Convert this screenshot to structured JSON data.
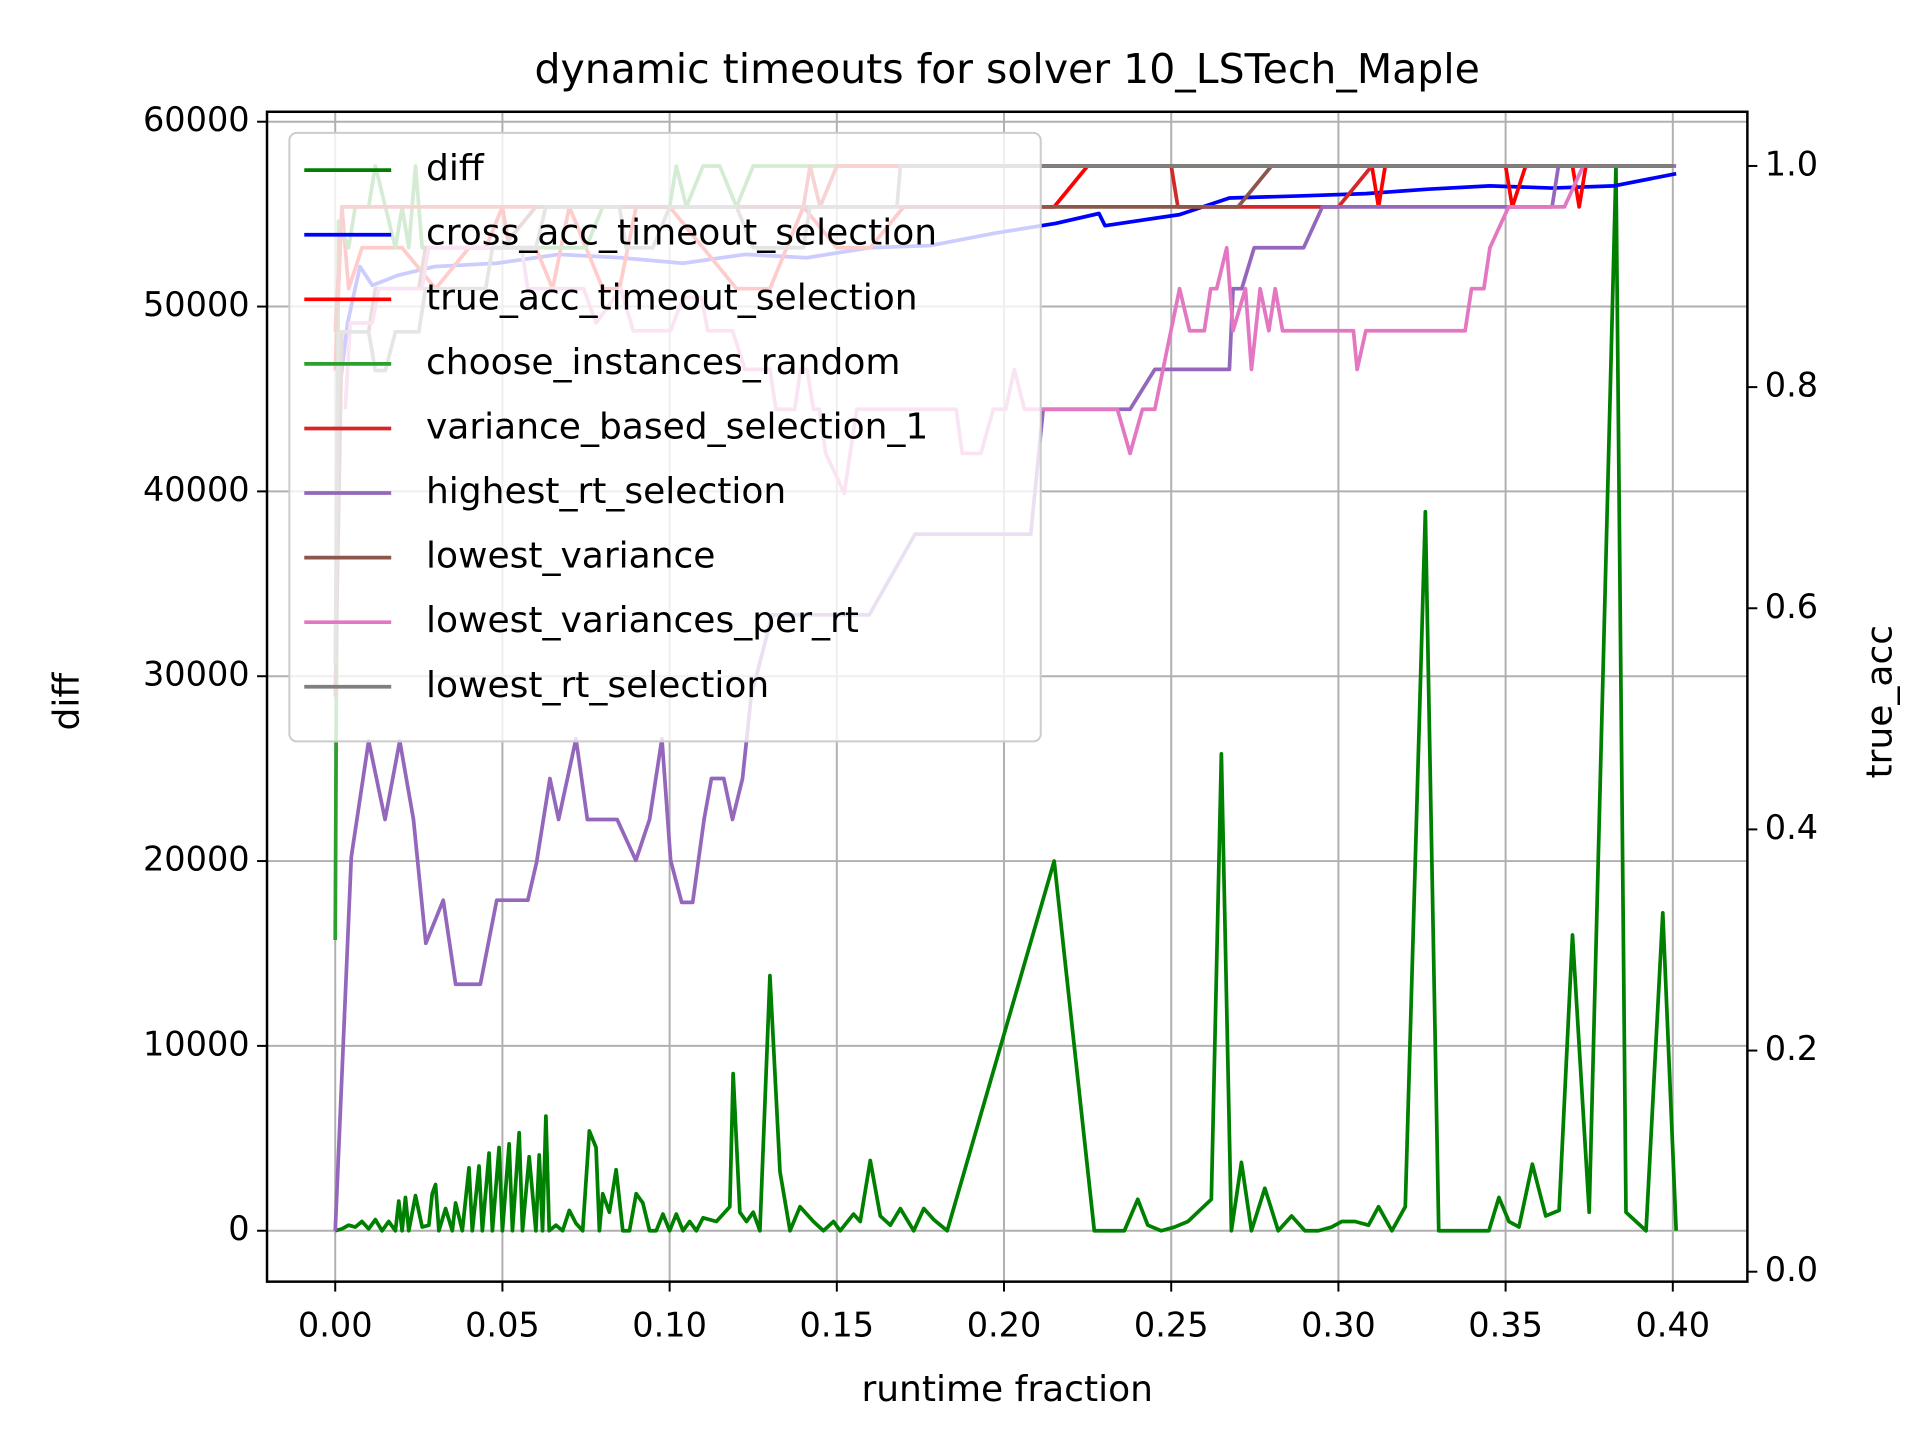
{
  "chart_data": {
    "type": "line",
    "title": "dynamic timeouts for solver 10_LSTech_Maple",
    "xlabel": "runtime fraction",
    "ylabel": "diff",
    "y2label": "true_acc",
    "ylabel_color": "green",
    "y2label_color": "red",
    "grid": true,
    "legend": "upper left",
    "xlim": [
      -0.0204,
      0.4223
    ],
    "ylim": [
      -2755,
      60538
    ],
    "y2lim": [
      -0.009,
      1.049
    ],
    "xticks": [
      {
        "value": 0,
        "label": "0.00"
      },
      {
        "value": 0.05,
        "label": "0.05"
      },
      {
        "value": 0.1,
        "label": "0.10"
      },
      {
        "value": 0.15,
        "label": "0.15"
      },
      {
        "value": 0.2,
        "label": "0.20"
      },
      {
        "value": 0.25,
        "label": "0.25"
      },
      {
        "value": 0.3,
        "label": "0.30"
      },
      {
        "value": 0.35,
        "label": "0.35"
      },
      {
        "value": 0.4,
        "label": "0.40"
      }
    ],
    "yticks": [
      0,
      10000,
      20000,
      30000,
      40000,
      50000,
      60000
    ],
    "y2ticks": [
      {
        "value": 0,
        "label": "0.0"
      },
      0.2,
      0.4,
      0.6,
      0.8,
      {
        "value": 1,
        "label": "1.0"
      }
    ],
    "series": [
      {
        "name": "diff",
        "color": "#008000",
        "axis": "y",
        "x": [
          0,
          0.002,
          0.004,
          0.006,
          0.008,
          0.01,
          0.012,
          0.014,
          0.016,
          0.018,
          0.019,
          0.02,
          0.021,
          0.022,
          0.024,
          0.026,
          0.028,
          0.029,
          0.03,
          0.031,
          0.033,
          0.035,
          0.036,
          0.038,
          0.04,
          0.041,
          0.043,
          0.044,
          0.046,
          0.047,
          0.049,
          0.05,
          0.052,
          0.053,
          0.055,
          0.056,
          0.058,
          0.06,
          0.061,
          0.062,
          0.063,
          0.064,
          0.066,
          0.068,
          0.07,
          0.072,
          0.074,
          0.076,
          0.078,
          0.079,
          0.08,
          0.082,
          0.084,
          0.086,
          0.088,
          0.09,
          0.092,
          0.094,
          0.096,
          0.098,
          0.1,
          0.102,
          0.104,
          0.106,
          0.108,
          0.11,
          0.114,
          0.118,
          0.119,
          0.121,
          0.123,
          0.125,
          0.127,
          0.13,
          0.133,
          0.136,
          0.139,
          0.143,
          0.146,
          0.149,
          0.151,
          0.155,
          0.157,
          0.16,
          0.163,
          0.166,
          0.169,
          0.173,
          0.176,
          0.179,
          0.183,
          0.215,
          0.227,
          0.236,
          0.24,
          0.243,
          0.247,
          0.251,
          0.255,
          0.262,
          0.265,
          0.268,
          0.271,
          0.274,
          0.278,
          0.282,
          0.286,
          0.29,
          0.294,
          0.298,
          0.301,
          0.305,
          0.309,
          0.312,
          0.316,
          0.32,
          0.326,
          0.33,
          0.345,
          0.348,
          0.351,
          0.354,
          0.358,
          0.362,
          0.366,
          0.37,
          0.375,
          0.383,
          0.386,
          0.392,
          0.397,
          0.401
        ],
        "values": [
          0,
          100,
          300,
          200,
          500,
          100,
          600,
          0,
          500,
          0,
          1600,
          0,
          1800,
          0,
          1900,
          200,
          300,
          2000,
          2500,
          0,
          1200,
          0,
          1500,
          0,
          3400,
          0,
          3500,
          0,
          4200,
          0,
          4500,
          0,
          4700,
          0,
          5300,
          0,
          4000,
          0,
          4100,
          0,
          6200,
          0,
          300,
          0,
          1100,
          400,
          0,
          5400,
          4500,
          0,
          2000,
          1000,
          3300,
          0,
          0,
          2000,
          1500,
          0,
          0,
          900,
          0,
          900,
          0,
          500,
          0,
          700,
          500,
          1300,
          8500,
          1000,
          500,
          1000,
          0,
          13800,
          3200,
          0,
          1300,
          500,
          0,
          500,
          0,
          900,
          500,
          3800,
          800,
          300,
          1200,
          0,
          1200,
          600,
          0,
          20000,
          0,
          0,
          1700,
          300,
          0,
          200,
          500,
          1700,
          25800,
          0,
          3700,
          0,
          2300,
          0,
          800,
          0,
          0,
          200,
          500,
          500,
          300,
          1300,
          0,
          1300,
          38900,
          0,
          0,
          1800,
          500,
          200,
          3600,
          800,
          1100,
          16000,
          1000,
          57500,
          1000,
          0,
          17200,
          0
        ]
      },
      {
        "name": "cross_acc_timeout_selection",
        "color": "#0000ff",
        "axis": "y2",
        "x": [
          0.001,
          0.0037,
          0.0074,
          0.0111,
          0.0186,
          0.0297,
          0.0483,
          0.0668,
          0.0854,
          0.104,
          0.1225,
          0.141,
          0.1597,
          0.178,
          0.1968,
          0.2154,
          0.2284,
          0.2302,
          0.2525,
          0.2674,
          0.2896,
          0.3082,
          0.3268,
          0.3453,
          0.3639,
          0.3825,
          0.401
        ],
        "values": [
          0.791,
          0.858,
          0.909,
          0.892,
          0.901,
          0.909,
          0.912,
          0.92,
          0.917,
          0.912,
          0.92,
          0.917,
          0.926,
          0.928,
          0.939,
          0.948,
          0.957,
          0.946,
          0.956,
          0.971,
          0.973,
          0.975,
          0.979,
          0.982,
          0.98,
          0.982,
          0.993
        ]
      },
      {
        "name": "true_acc_timeout_selection",
        "color": "#ff0000",
        "axis": "y2",
        "x": [
          0,
          0.002,
          0.004,
          0.008,
          0.02,
          0.03,
          0.04,
          0.045,
          0.05,
          0.052,
          0.06,
          0.065,
          0.07,
          0.08,
          0.085,
          0.09,
          0.1,
          0.11,
          0.12,
          0.13,
          0.135,
          0.14,
          0.15,
          0.16,
          0.17,
          0.215,
          0.225,
          0.31,
          0.312,
          0.314,
          0.35,
          0.352,
          0.356,
          0.37,
          0.372,
          0.374,
          0.4
        ],
        "values": [
          0.815,
          0.963,
          0.889,
          0.926,
          0.926,
          0.889,
          0.926,
          0.926,
          0.963,
          0.926,
          0.926,
          0.889,
          0.963,
          0.889,
          0.889,
          0.963,
          0.963,
          0.926,
          0.889,
          0.889,
          0.926,
          0.963,
          0.926,
          0.926,
          0.963,
          0.963,
          1.0,
          1.0,
          0.963,
          1.0,
          1.0,
          0.963,
          1.0,
          1.0,
          0.963,
          1.0,
          1.0
        ]
      },
      {
        "name": "choose_instances_random",
        "color": "#2ca02c",
        "axis": "y2",
        "x": [
          0,
          0.001,
          0.004,
          0.006,
          0.01,
          0.012,
          0.015,
          0.018,
          0.02,
          0.022,
          0.024,
          0.026,
          0.075,
          0.08,
          0.1,
          0.102,
          0.105,
          0.11,
          0.115,
          0.12,
          0.125,
          0.4
        ],
        "values": [
          0.3,
          0.95,
          0.926,
          0.963,
          0.963,
          1.0,
          0.963,
          0.926,
          0.963,
          0.926,
          1.0,
          0.926,
          0.926,
          0.963,
          0.963,
          1.0,
          0.963,
          1.0,
          1.0,
          0.963,
          1.0,
          1.0
        ]
      },
      {
        "name": "variance_based_selection_1",
        "color": "#d62728",
        "axis": "y2",
        "x": [
          0,
          0.002,
          0.14,
          0.142,
          0.145,
          0.15,
          0.25,
          0.252,
          0.3,
          0.31,
          0.4
        ],
        "values": [
          0.85,
          0.963,
          0.963,
          1.0,
          0.963,
          1.0,
          1.0,
          0.963,
          0.963,
          1.0,
          1.0
        ]
      },
      {
        "name": "highest_rt_selection",
        "color": "#9467bd",
        "axis": "y2",
        "x": [
          0,
          0.0048,
          0.01,
          0.0149,
          0.0193,
          0.0234,
          0.0271,
          0.0323,
          0.036,
          0.0434,
          0.0483,
          0.0576,
          0.0602,
          0.0642,
          0.0668,
          0.072,
          0.0754,
          0.0843,
          0.0899,
          0.094,
          0.0977,
          0.1003,
          0.1036,
          0.1069,
          0.1103,
          0.1125,
          0.1162,
          0.1188,
          0.1218,
          0.1244,
          0.1307,
          0.1597,
          0.1734,
          0.208,
          0.2117,
          0.2377,
          0.2451,
          0.2674,
          0.2685,
          0.2711,
          0.2748,
          0.2896,
          0.2952,
          0.3639,
          0.3658,
          0.401
        ],
        "values": [
          0.037,
          0.375,
          0.48,
          0.409,
          0.48,
          0.409,
          0.297,
          0.336,
          0.26,
          0.26,
          0.336,
          0.336,
          0.37,
          0.446,
          0.409,
          0.482,
          0.409,
          0.409,
          0.372,
          0.409,
          0.482,
          0.372,
          0.334,
          0.334,
          0.409,
          0.446,
          0.446,
          0.409,
          0.446,
          0.521,
          0.594,
          0.594,
          0.667,
          0.667,
          0.78,
          0.78,
          0.816,
          0.816,
          0.889,
          0.889,
          0.926,
          0.926,
          0.963,
          0.963,
          1.0,
          1.0
        ]
      },
      {
        "name": "lowest_variance",
        "color": "#8c564b",
        "axis": "y2",
        "x": [
          0,
          0.002,
          0.01,
          0.012,
          0.025,
          0.027,
          0.05,
          0.06,
          0.27,
          0.28,
          0.4
        ],
        "values": [
          0.52,
          0.85,
          0.85,
          0.889,
          0.889,
          0.926,
          0.926,
          0.963,
          0.963,
          1.0,
          1.0
        ]
      },
      {
        "name": "lowest_variances_per_rt",
        "color": "#e377c2",
        "axis": "y2",
        "x": [
          0.003,
          0.0045,
          0.0111,
          0.013,
          0.026,
          0.0279,
          0.0557,
          0.0576,
          0.0743,
          0.078,
          0.0854,
          0.0891,
          0.1003,
          0.104,
          0.1095,
          0.1114,
          0.1188,
          0.1225,
          0.13,
          0.1318,
          0.1374,
          0.1392,
          0.1411,
          0.143,
          0.1448,
          0.1467,
          0.1522,
          0.156,
          0.1857,
          0.1875,
          0.1931,
          0.1968,
          0.2005,
          0.2031,
          0.2061,
          0.2339,
          0.2377,
          0.2414,
          0.2451,
          0.2525,
          0.2555,
          0.2599,
          0.2618,
          0.2636,
          0.2666,
          0.2685,
          0.2722,
          0.274,
          0.2766,
          0.2792,
          0.2811,
          0.2833,
          0.3045,
          0.3056,
          0.3082,
          0.3379,
          0.3398,
          0.3435,
          0.3453,
          0.3509,
          0.3676,
          0.3732
        ],
        "values": [
          0.78,
          0.858,
          0.858,
          0.889,
          0.889,
          0.926,
          0.926,
          0.889,
          0.889,
          0.858,
          0.889,
          0.851,
          0.851,
          0.881,
          0.881,
          0.851,
          0.851,
          0.816,
          0.816,
          0.78,
          0.78,
          0.816,
          0.816,
          0.78,
          0.78,
          0.74,
          0.704,
          0.78,
          0.78,
          0.74,
          0.74,
          0.78,
          0.78,
          0.816,
          0.78,
          0.78,
          0.74,
          0.78,
          0.78,
          0.889,
          0.851,
          0.851,
          0.889,
          0.889,
          0.926,
          0.851,
          0.889,
          0.816,
          0.889,
          0.851,
          0.889,
          0.851,
          0.851,
          0.816,
          0.851,
          0.851,
          0.889,
          0.889,
          0.926,
          0.963,
          0.963,
          1.0
        ]
      },
      {
        "name": "lowest_rt_selection",
        "color": "#7f7f7f",
        "axis": "y2",
        "x": [
          0,
          0.001,
          0.01,
          0.012,
          0.015,
          0.018,
          0.025,
          0.027,
          0.045,
          0.047,
          0.06,
          0.063,
          0.085,
          0.087,
          0.095,
          0.1,
          0.12,
          0.125,
          0.14,
          0.142,
          0.168,
          0.169,
          0.4
        ],
        "values": [
          0.55,
          0.85,
          0.85,
          0.815,
          0.815,
          0.85,
          0.85,
          0.889,
          0.889,
          0.926,
          0.926,
          0.963,
          0.963,
          0.926,
          0.926,
          0.963,
          0.963,
          0.926,
          0.926,
          0.963,
          0.963,
          1.0,
          1.0
        ]
      }
    ]
  }
}
